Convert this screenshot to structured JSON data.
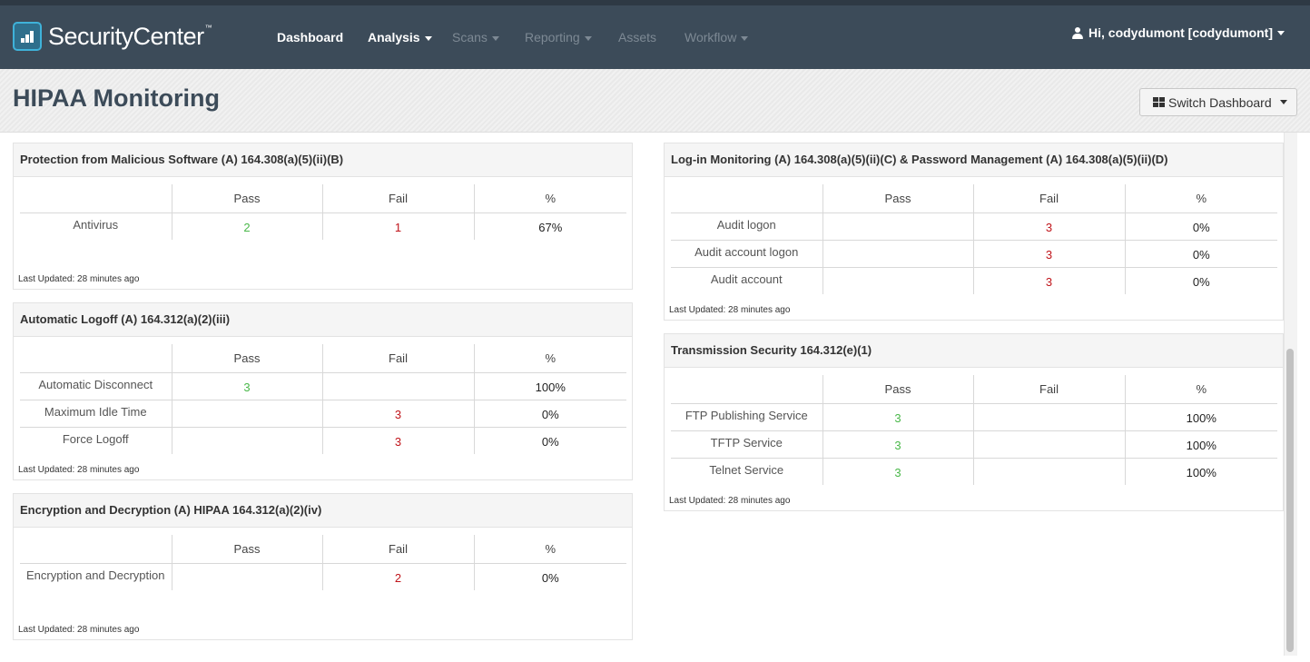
{
  "brand": {
    "name": "SecurityCenter",
    "trademark": "™",
    "accent": "#3fb2d9"
  },
  "nav": {
    "items": [
      {
        "label": "Dashboard",
        "dropdown": false,
        "enabled": true
      },
      {
        "label": "Analysis",
        "dropdown": true,
        "enabled": true
      },
      {
        "label": "Scans",
        "dropdown": true,
        "enabled": false
      },
      {
        "label": "Reporting",
        "dropdown": true,
        "enabled": false
      },
      {
        "label": "Assets",
        "dropdown": false,
        "enabled": false
      },
      {
        "label": "Workflow",
        "dropdown": true,
        "enabled": false
      }
    ],
    "user": "Hi, codydumont [codydumont]"
  },
  "page": {
    "title": "HIPAA Monitoring",
    "switch_dashboard": "Switch Dashboard"
  },
  "colors": {
    "pass": "#4ab84a",
    "fail": "#c0141a",
    "navbar": "#3c4b59"
  },
  "columns": {
    "pass": "Pass",
    "fail": "Fail",
    "pct": "%"
  },
  "panels": {
    "malware": {
      "title": "Protection from Malicious Software (A) 164.308(a)(5)(ii)(B)",
      "rows": [
        {
          "label": "Antivirus",
          "pass": "2",
          "fail": "1",
          "pct": "67%"
        }
      ],
      "updated": "Last Updated: 28 minutes ago"
    },
    "logoff": {
      "title": "Automatic Logoff (A) 164.312(a)(2)(iii)",
      "rows": [
        {
          "label": "Automatic Disconnect",
          "pass": "3",
          "fail": "",
          "pct": "100%"
        },
        {
          "label": "Maximum Idle Time",
          "pass": "",
          "fail": "3",
          "pct": "0%"
        },
        {
          "label": "Force Logoff",
          "pass": "",
          "fail": "3",
          "pct": "0%"
        }
      ],
      "updated": "Last Updated: 28 minutes ago"
    },
    "encryption": {
      "title": "Encryption and Decryption (A) HIPAA 164.312(a)(2)(iv)",
      "rows": [
        {
          "label": "Encryption and Decryption",
          "pass": "",
          "fail": "2",
          "pct": "0%"
        }
      ],
      "updated": "Last Updated: 28 minutes ago"
    },
    "login": {
      "title": "Log-in Monitoring (A) 164.308(a)(5)(ii)(C) & Password Management (A) 164.308(a)(5)(ii)(D)",
      "rows": [
        {
          "label": "Audit logon",
          "pass": "",
          "fail": "3",
          "pct": "0%"
        },
        {
          "label": "Audit account logon",
          "pass": "",
          "fail": "3",
          "pct": "0%"
        },
        {
          "label": "Audit account",
          "pass": "",
          "fail": "3",
          "pct": "0%"
        }
      ],
      "updated": "Last Updated: 28 minutes ago"
    },
    "transmission": {
      "title": "Transmission Security 164.312(e)(1)",
      "rows": [
        {
          "label": "FTP Publishing Service",
          "pass": "3",
          "fail": "",
          "pct": "100%"
        },
        {
          "label": "TFTP Service",
          "pass": "3",
          "fail": "",
          "pct": "100%"
        },
        {
          "label": "Telnet Service",
          "pass": "3",
          "fail": "",
          "pct": "100%"
        }
      ],
      "updated": "Last Updated: 28 minutes ago"
    }
  }
}
